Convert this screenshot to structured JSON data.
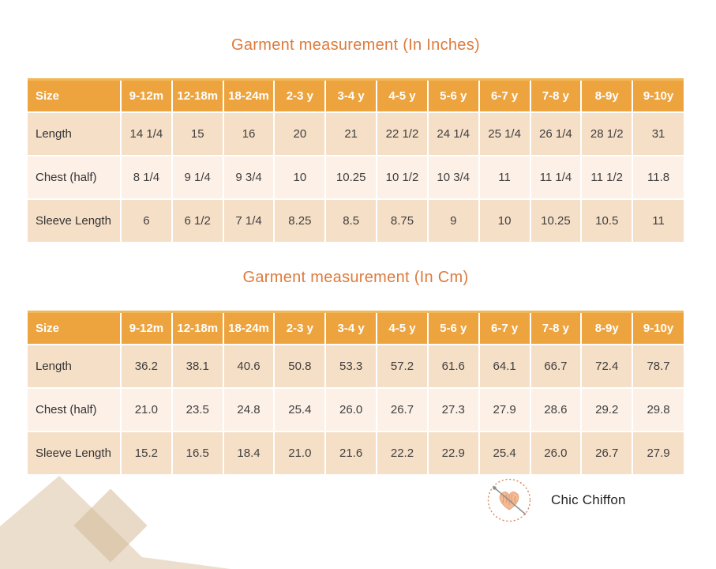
{
  "chart_data": [
    {
      "type": "table",
      "title": "Garment measurement (In Inches)",
      "columns": [
        "Size",
        "9-12m",
        "12-18m",
        "18-24m",
        "2-3 y",
        "3-4 y",
        "4-5 y",
        "5-6 y",
        "6-7 y",
        "7-8 y",
        "8-9y",
        "9-10y"
      ],
      "rows": [
        {
          "label": "Length",
          "values": [
            "14 1/4",
            "15",
            "16",
            "20",
            "21",
            "22 1/2",
            "24 1/4",
            "25 1/4",
            "26 1/4",
            "28 1/2",
            "31"
          ]
        },
        {
          "label": "Chest (half)",
          "values": [
            "8 1/4",
            "9 1/4",
            "9 3/4",
            "10",
            "10.25",
            "10 1/2",
            "10 3/4",
            "11",
            "11 1/4",
            "11 1/2",
            "11.8"
          ]
        },
        {
          "label": "Sleeve Length",
          "values": [
            "6",
            "6 1/2",
            "7 1/4",
            "8.25",
            "8.5",
            "8.75",
            "9",
            "10",
            "10.25",
            "10.5",
            "11"
          ]
        }
      ]
    },
    {
      "type": "table",
      "title": "Garment measurement (In Cm)",
      "columns": [
        "Size",
        "9-12m",
        "12-18m",
        "18-24m",
        "2-3 y",
        "3-4 y",
        "4-5 y",
        "5-6 y",
        "6-7 y",
        "7-8 y",
        "8-9y",
        "9-10y"
      ],
      "rows": [
        {
          "label": "Length",
          "values": [
            "36.2",
            "38.1",
            "40.6",
            "50.8",
            "53.3",
            "57.2",
            "61.6",
            "64.1",
            "66.7",
            "72.4",
            "78.7"
          ]
        },
        {
          "label": "Chest (half)",
          "values": [
            "21.0",
            "23.5",
            "24.8",
            "25.4",
            "26.0",
            "26.7",
            "27.3",
            "27.9",
            "28.6",
            "29.2",
            "29.8"
          ]
        },
        {
          "label": "Sleeve Length",
          "values": [
            "15.2",
            "16.5",
            "18.4",
            "21.0",
            "21.6",
            "22.2",
            "22.9",
            "25.4",
            "26.0",
            "26.7",
            "27.9"
          ]
        }
      ]
    }
  ],
  "brand": {
    "name": "Chic Chiffon",
    "logo_icon": "fabric-heart-and-needle-stamp-icon"
  },
  "colors": {
    "title_text": "#dd7a3c",
    "header_bg": "#eda43e",
    "header_text": "#ffffff",
    "row_peach": "#f6dfc7",
    "row_light": "#fcf0e7",
    "body_text": "#3f3f3f",
    "decor_beige": "#e9dcc6",
    "decor_overlap": "#dcc3a0",
    "logo_ring": "#d98e65",
    "logo_fabric": "#f3bb95",
    "needle_gray": "#909090"
  }
}
